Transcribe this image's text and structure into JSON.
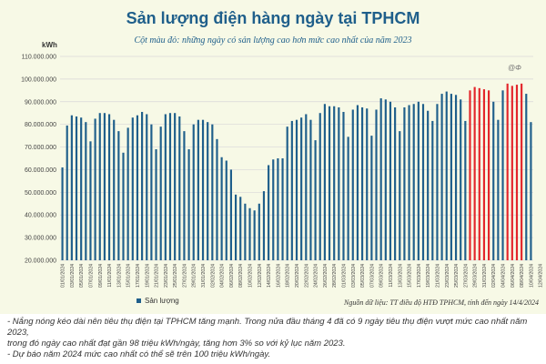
{
  "title": "Sản lượng điện hàng ngày tại TPHCM",
  "subtitle": "Cột màu đỏ: những ngày có sản lượng cao hơn mức cao nhất của năm 2023",
  "unit": "kWh",
  "watermark": "@Φ",
  "legend_label": "Sản lượng",
  "source": "Nguồn dữ liệu: TT điều độ HTĐ TPHCM, tính đến ngày 14/4/2024",
  "notes": [
    "- Nắng nóng kéo dài nên tiêu thụ điện tại TPHCM tăng mạnh. Trong nửa đầu tháng 4 đã có 9 ngày tiêu thụ điện vượt mức cao nhất năm 2023,",
    "trong đó ngày cao nhất đạt gần 98 triệu kWh/ngày, tăng hơn 3% so với kỷ lục năm 2023.",
    "- Dự báo năm 2024 mức cao nhất có thể sẽ trên 100 triệu kWh/ngày."
  ],
  "colors": {
    "normal": "#1f5f8b",
    "record": "#e3262b",
    "title": "#1f5f8b",
    "background": "#f7f9e6"
  },
  "chart_data": {
    "type": "bar",
    "ylim": [
      20000000,
      110000000
    ],
    "yticks": [
      "110.000.000",
      "100.000.000",
      "90.000.000",
      "80.000.000",
      "70.000.000",
      "60.000.000",
      "50.000.000",
      "40.000.000",
      "30.000.000",
      "20.000.000"
    ],
    "ytick_values": [
      110000000,
      100000000,
      90000000,
      80000000,
      70000000,
      60000000,
      50000000,
      40000000,
      30000000,
      20000000
    ],
    "grid": true,
    "legend_position": "bottom-left",
    "x_tick_labels": [
      "01/01/2024",
      "03/01/2024",
      "05/01/2024",
      "07/01/2024",
      "09/01/2024",
      "11/01/2024",
      "13/01/2024",
      "15/01/2024",
      "17/01/2024",
      "19/01/2024",
      "21/01/2024",
      "23/01/2024",
      "25/01/2024",
      "27/01/2024",
      "29/01/2024",
      "31/01/2024",
      "02/02/2024",
      "04/02/2024",
      "06/02/2024",
      "08/02/2024",
      "10/02/2024",
      "12/02/2024",
      "14/02/2024",
      "16/02/2024",
      "18/02/2024",
      "20/02/2024",
      "22/02/2024",
      "24/02/2024",
      "26/02/2024",
      "28/02/2024",
      "01/03/2024",
      "03/03/2024",
      "05/03/2024",
      "07/03/2024",
      "09/03/2024",
      "11/03/2024",
      "13/03/2024",
      "15/03/2024",
      "17/03/2024",
      "19/03/2024",
      "21/03/2024",
      "23/03/2024",
      "25/03/2024",
      "27/03/2024",
      "29/03/2024",
      "31/03/2024",
      "02/04/2024",
      "04/04/2024",
      "06/04/2024",
      "08/04/2024",
      "10/04/2024",
      "12/04/2024",
      "14/04/2024"
    ],
    "series": [
      {
        "name": "Sản lượng",
        "values": [
          61000000,
          79500000,
          84000000,
          83500000,
          83000000,
          81000000,
          72500000,
          82500000,
          85000000,
          85000000,
          84500000,
          82000000,
          77000000,
          67500000,
          78500000,
          83000000,
          84000000,
          85500000,
          84500000,
          80000000,
          69000000,
          79000000,
          84500000,
          85000000,
          85000000,
          83500000,
          77000000,
          69000000,
          80000000,
          82000000,
          82000000,
          81000000,
          80000000,
          73500000,
          65500000,
          64000000,
          60000000,
          49000000,
          48000000,
          45000000,
          43000000,
          42000000,
          45000000,
          50500000,
          62000000,
          64500000,
          65000000,
          65000000,
          79000000,
          81500000,
          82000000,
          83000000,
          84500000,
          82000000,
          73000000,
          85000000,
          89000000,
          88000000,
          88000000,
          87500000,
          85500000,
          74500000,
          86500000,
          88500000,
          87500000,
          87000000,
          75000000,
          86500000,
          91500000,
          91000000,
          90000000,
          87500000,
          77000000,
          87500000,
          88500000,
          89000000,
          90000000,
          89000000,
          86000000,
          81500000,
          89000000,
          93500000,
          94500000,
          93500000,
          93000000,
          91000000,
          81500000,
          95000000,
          96500000,
          96000000,
          95500000,
          95000000,
          90000000,
          82000000,
          95000000,
          98000000,
          97000000,
          97500000,
          98000000,
          93500000,
          81000000
        ],
        "record_flags": [
          false,
          false,
          false,
          false,
          false,
          false,
          false,
          false,
          false,
          false,
          false,
          false,
          false,
          false,
          false,
          false,
          false,
          false,
          false,
          false,
          false,
          false,
          false,
          false,
          false,
          false,
          false,
          false,
          false,
          false,
          false,
          false,
          false,
          false,
          false,
          false,
          false,
          false,
          false,
          false,
          false,
          false,
          false,
          false,
          false,
          false,
          false,
          false,
          false,
          false,
          false,
          false,
          false,
          false,
          false,
          false,
          false,
          false,
          false,
          false,
          false,
          false,
          false,
          false,
          false,
          false,
          false,
          false,
          false,
          false,
          false,
          false,
          false,
          false,
          false,
          false,
          false,
          false,
          false,
          false,
          false,
          false,
          false,
          false,
          false,
          false,
          false,
          true,
          true,
          true,
          true,
          true,
          false,
          false,
          false,
          true,
          true,
          true,
          true,
          false,
          false
        ]
      }
    ]
  }
}
